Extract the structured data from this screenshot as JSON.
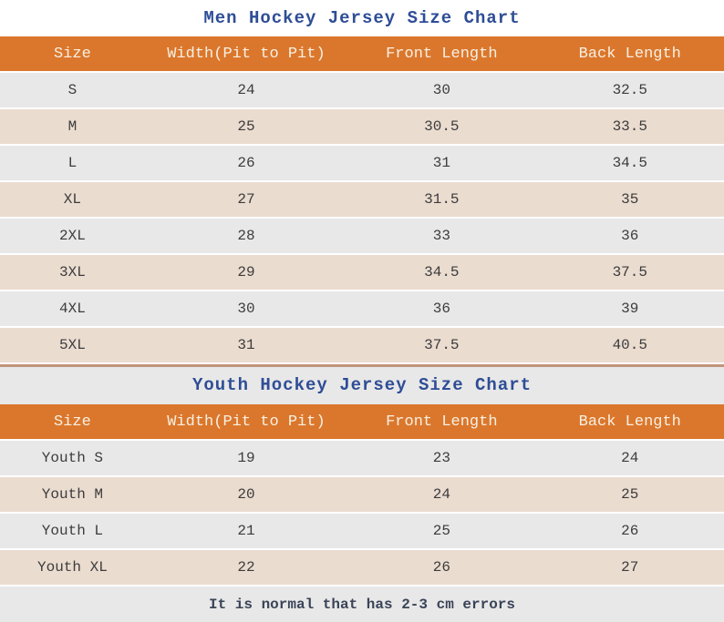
{
  "colors": {
    "header_bg": "#DB772C",
    "header_text": "#F7F0E3",
    "row_gray": "#E8E8E8",
    "row_peach": "#EBDCD0",
    "title_blue": "#2E4D96",
    "cell_text": "#3C3C3C",
    "divider_tan": "#C29478",
    "footer_text": "#3A4458"
  },
  "tables": [
    {
      "title": "Men Hockey Jersey Size Chart",
      "columns": [
        "Size",
        "Width(Pit to Pit)",
        "Front Length",
        "Back Length"
      ],
      "rows": [
        [
          "S",
          "24",
          "30",
          "32.5"
        ],
        [
          "M",
          "25",
          "30.5",
          "33.5"
        ],
        [
          "L",
          "26",
          "31",
          "34.5"
        ],
        [
          "XL",
          "27",
          "31.5",
          "35"
        ],
        [
          "2XL",
          "28",
          "33",
          "36"
        ],
        [
          "3XL",
          "29",
          "34.5",
          "37.5"
        ],
        [
          "4XL",
          "30",
          "36",
          "39"
        ],
        [
          "5XL",
          "31",
          "37.5",
          "40.5"
        ]
      ]
    },
    {
      "title": "Youth Hockey Jersey Size Chart",
      "columns": [
        "Size",
        "Width(Pit to Pit)",
        "Front Length",
        "Back Length"
      ],
      "rows": [
        [
          "Youth S",
          "19",
          "23",
          "24"
        ],
        [
          "Youth M",
          "20",
          "24",
          "25"
        ],
        [
          "Youth L",
          "21",
          "25",
          "26"
        ],
        [
          "Youth XL",
          "22",
          "26",
          "27"
        ]
      ]
    }
  ],
  "footer_note": "It is normal that has 2-3 cm errors"
}
